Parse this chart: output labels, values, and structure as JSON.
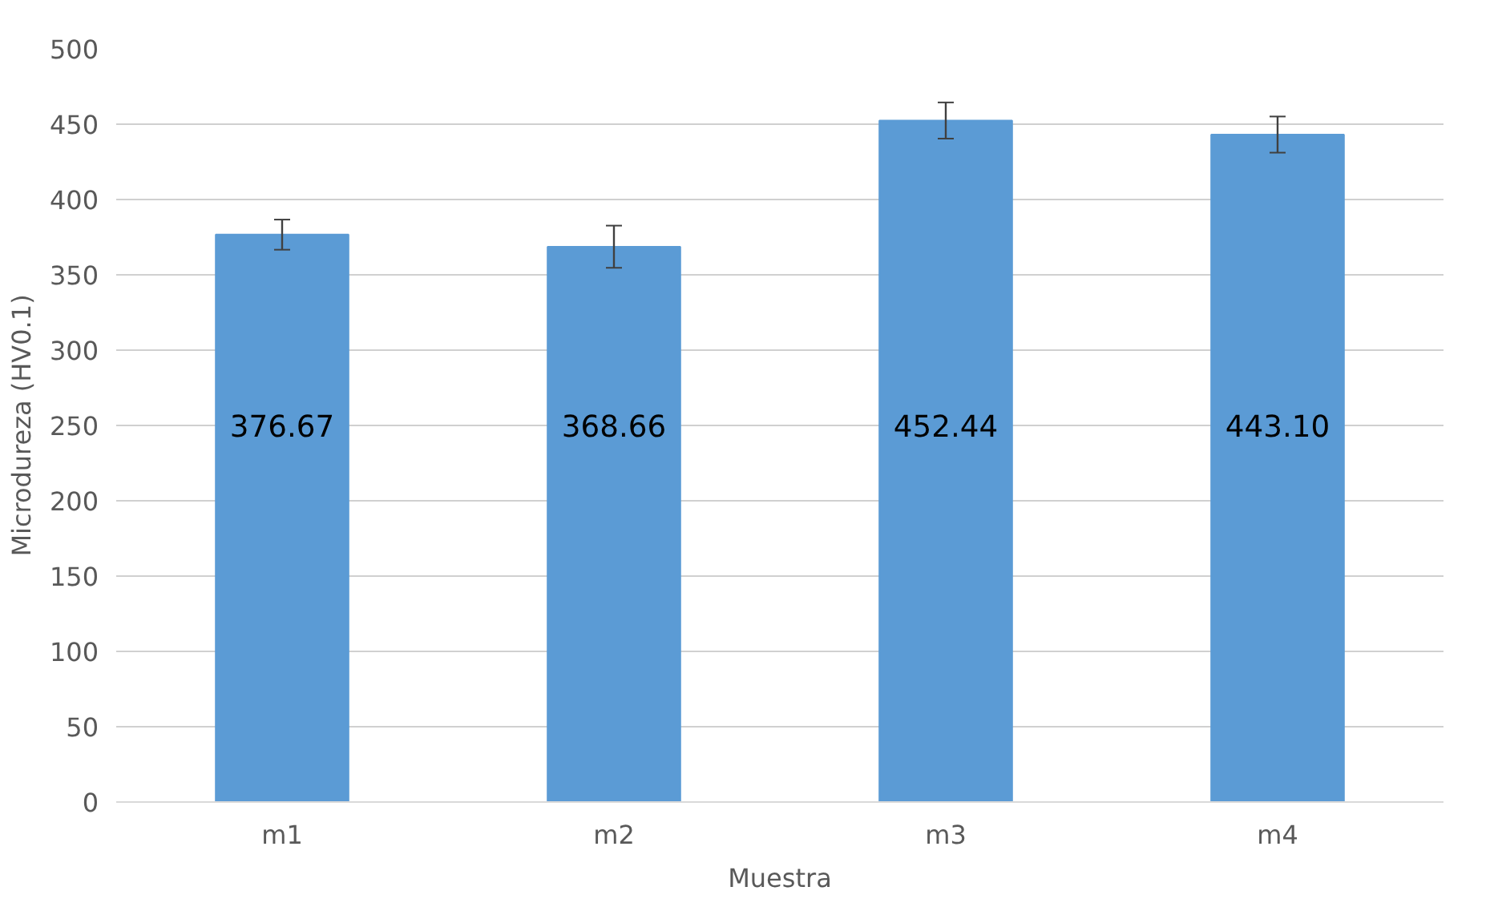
{
  "chart_data": {
    "type": "bar",
    "xlabel": "Muestra",
    "ylabel": "Microdureza (HV0.1)",
    "categories": [
      "m1",
      "m2",
      "m3",
      "m4"
    ],
    "values": [
      376.67,
      368.66,
      452.44,
      443.1
    ],
    "errors": [
      10,
      14,
      12,
      12
    ],
    "value_labels": [
      "376.67",
      "368.66",
      "452.44",
      "443.10"
    ],
    "color": "#5b9bd5",
    "ylim": [
      0,
      500
    ],
    "yticks": [
      0,
      50,
      100,
      150,
      200,
      250,
      300,
      350,
      400,
      450,
      500
    ],
    "grid": "y"
  }
}
